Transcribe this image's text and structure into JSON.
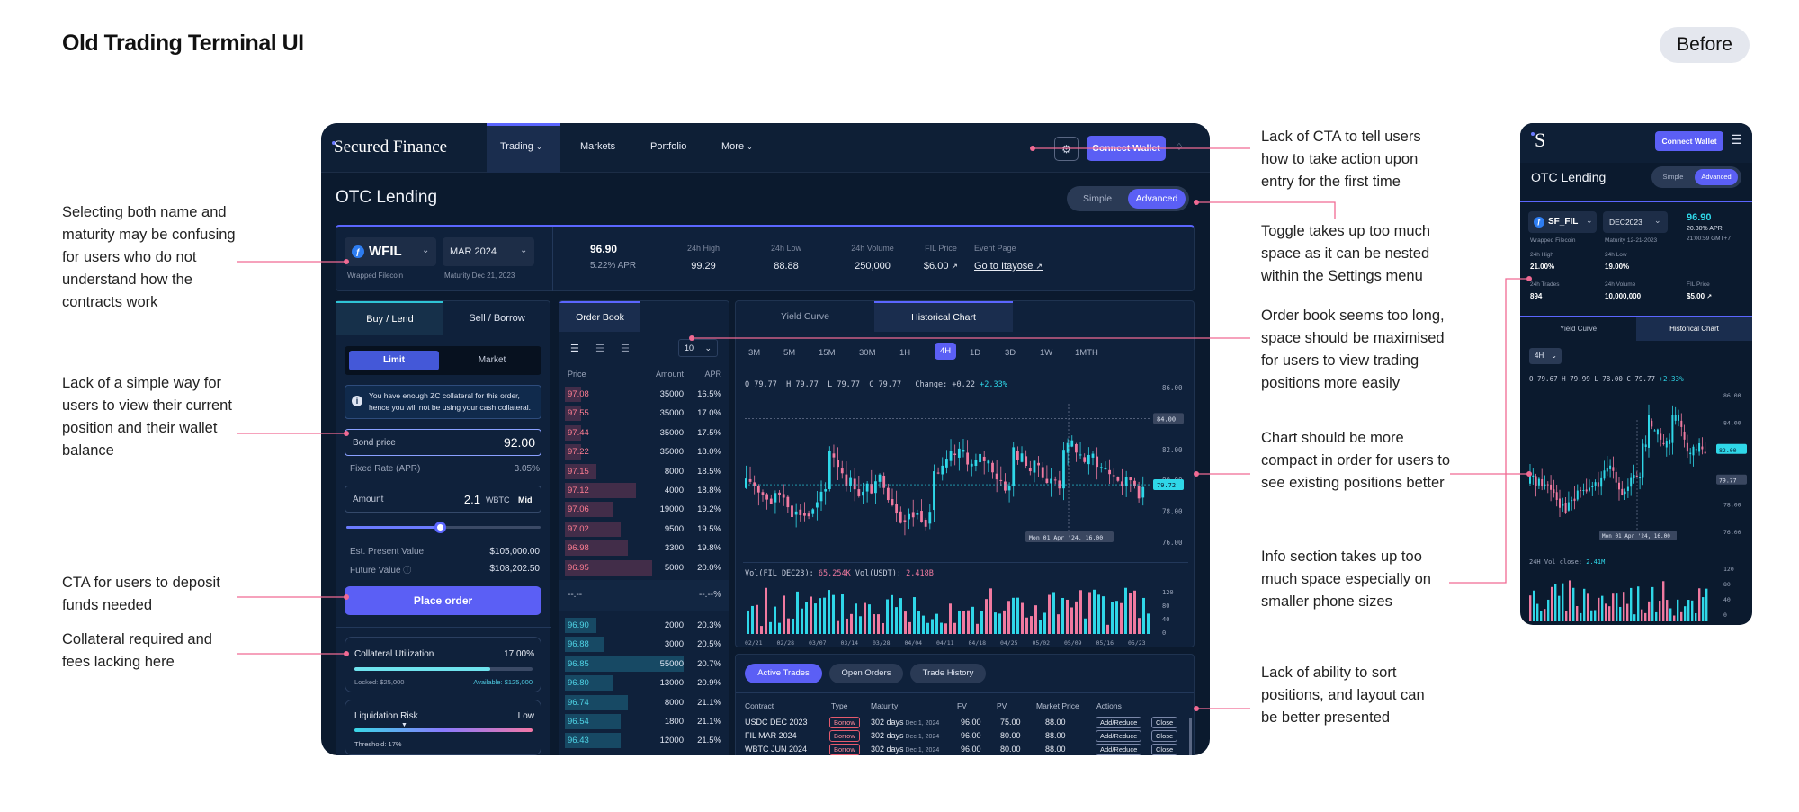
{
  "page": {
    "title": "Old Trading Terminal UI",
    "badge": "Before"
  },
  "annotations_left": [
    "Selecting both name and maturity may be confusing for users who do not understand how the contracts work",
    "Lack of a simple way for users to view their current position and their wallet balance",
    "CTA for users to deposit funds needed",
    "Collateral required and fees lacking here"
  ],
  "annotations_right": [
    "Lack of CTA to tell users how to take action upon entry for the first time",
    "Toggle takes up too much space as it can be nested within the Settings menu",
    "Order book seems too long, space should be maximised for users to view trading positions more easily",
    "Chart should be more compact in order for users to see existing positions better",
    "Info section takes up too much space especially on smaller phone sizes",
    "Lack of ability to sort positions, and layout can be better presented"
  ],
  "colors": {
    "accent": "#5b5ff5",
    "cyan": "#2fd7e8",
    "pink": "#f07aa0",
    "annotation_line": "#f06a93",
    "bg": "#0b1a2e"
  },
  "desktop": {
    "nav": {
      "logo": "Secured Finance",
      "items": [
        "Trading",
        "Markets",
        "Portfolio",
        "More"
      ],
      "connect": "Connect Wallet"
    },
    "title": "OTC Lending",
    "toggle": {
      "simple": "Simple",
      "advanced": "Advanced"
    },
    "info": {
      "token": "WFIL",
      "token_sub": "Wrapped Filecoin",
      "maturity": "MAR 2024",
      "maturity_sub": "Maturity Dec 21, 2023",
      "price": "96.90",
      "apr": "5.22% APR",
      "stats": [
        {
          "label": "24h High",
          "value": "99.29"
        },
        {
          "label": "24h Low",
          "value": "88.88"
        },
        {
          "label": "24h Volume",
          "value": "250,000"
        },
        {
          "label": "FIL Price",
          "value": "$6.00"
        },
        {
          "label": "Event Page",
          "value": "Go to Itayose"
        }
      ]
    },
    "order_form": {
      "tabs": [
        "Buy / Lend",
        "Sell / Borrow"
      ],
      "modes": [
        "Limit",
        "Market"
      ],
      "notice": "You have enough ZC collateral for this order, hence you will not be using your cash collateral.",
      "bond_price_label": "Bond price",
      "bond_price": "92.00",
      "fixed_rate_label": "Fixed Rate (APR)",
      "fixed_rate": "3.05%",
      "amount_label": "Amount",
      "amount": "2.1",
      "amount_unit": "WBTC",
      "amount_mid": "Mid",
      "slider_pct": 0.48,
      "epv_label": "Est. Present Value",
      "epv": "$105,000.00",
      "fv_label": "Future Value",
      "fv": "$108,202.50",
      "place_order": "Place order",
      "collateral_label": "Collateral Utilization",
      "collateral_pct": "17.00%",
      "collateral_fill": 0.17,
      "locked": "Locked: $25,000",
      "available": "Available: $125,000",
      "liq_label": "Liquidation Risk",
      "liq_value": "Low",
      "threshold": "Threshold: 17%"
    },
    "order_book": {
      "tab": "Order Book",
      "depth": "10",
      "headers": [
        "Price",
        "Amount",
        "APR"
      ],
      "asks": [
        {
          "price": "97.08",
          "amount": "35000",
          "apr": "16.5%",
          "depth": 0.1
        },
        {
          "price": "97.55",
          "amount": "35000",
          "apr": "17.0%",
          "depth": 0.1
        },
        {
          "price": "97.44",
          "amount": "35000",
          "apr": "17.5%",
          "depth": 0.1
        },
        {
          "price": "97.22",
          "amount": "35000",
          "apr": "18.0%",
          "depth": 0.1
        },
        {
          "price": "97.15",
          "amount": "8000",
          "apr": "18.5%",
          "depth": 0.2
        },
        {
          "price": "97.12",
          "amount": "4000",
          "apr": "18.8%",
          "depth": 0.45
        },
        {
          "price": "97.06",
          "amount": "19000",
          "apr": "19.2%",
          "depth": 0.3
        },
        {
          "price": "97.02",
          "amount": "9500",
          "apr": "19.5%",
          "depth": 0.35
        },
        {
          "price": "96.98",
          "amount": "3300",
          "apr": "19.8%",
          "depth": 0.4
        },
        {
          "price": "96.95",
          "amount": "5000",
          "apr": "20.0%",
          "depth": 0.55
        }
      ],
      "mid_left": "--.--",
      "mid_right": "--.--%",
      "bids": [
        {
          "price": "96.90",
          "amount": "2000",
          "apr": "20.3%",
          "depth": 0.2
        },
        {
          "price": "96.88",
          "amount": "3000",
          "apr": "20.5%",
          "depth": 0.25
        },
        {
          "price": "96.85",
          "amount": "55000",
          "apr": "20.7%",
          "depth": 0.75
        },
        {
          "price": "96.80",
          "amount": "13000",
          "apr": "20.9%",
          "depth": 0.3
        },
        {
          "price": "96.74",
          "amount": "8000",
          "apr": "21.1%",
          "depth": 0.4
        },
        {
          "price": "96.54",
          "amount": "1800",
          "apr": "21.1%",
          "depth": 0.35
        },
        {
          "price": "96.43",
          "amount": "12000",
          "apr": "21.5%",
          "depth": 0.35
        }
      ]
    },
    "chart": {
      "tabs": [
        "Yield Curve",
        "Historical Chart"
      ],
      "timeframes": [
        "3M",
        "5M",
        "15M",
        "30M",
        "1H",
        "4H",
        "1D",
        "3D",
        "1W",
        "1MTH"
      ],
      "active_tf": "4H",
      "ohlc": {
        "o": "79.77",
        "h": "79.77",
        "l": "79.77",
        "c": "79.77",
        "change": "+0.22",
        "change_pct": "+2.33%"
      },
      "price_ticks": [
        "86.00",
        "84.00",
        "82.00",
        "80.00",
        "78.00",
        "76.00"
      ],
      "marker_84": "84.00",
      "last_price": "79.72",
      "crosshair": "Mon 01 Apr '24, 16.00",
      "vol_label": "Vol(FIL DEC23):",
      "vol_value": "65.254K",
      "vol_usdt_label": "Vol(USDT):",
      "vol_usdt_value": "2.418B",
      "vol_ticks": [
        "120",
        "80",
        "40",
        "0"
      ],
      "dates": [
        "02/21",
        "02/28",
        "03/07",
        "03/14",
        "03/28",
        "04/04",
        "04/11",
        "04/18",
        "04/25",
        "05/02",
        "05/09",
        "05/16",
        "05/23"
      ]
    },
    "trades": {
      "tabs": [
        "Active Trades",
        "Open Orders",
        "Trade History"
      ],
      "headers": [
        "Contract",
        "Type",
        "Maturity",
        "FV",
        "PV",
        "Market Price",
        "Actions"
      ],
      "rows": [
        {
          "contract": "USDC DEC 2023",
          "type": "Borrow",
          "maturity": "302 days",
          "maturity_sub": "Dec 1, 2024",
          "fv": "96.00",
          "pv": "75.00",
          "market": "88.00"
        },
        {
          "contract": "FIL MAR 2024",
          "type": "Borrow",
          "maturity": "302 days",
          "maturity_sub": "Dec 1, 2024",
          "fv": "96.00",
          "pv": "80.00",
          "market": "88.00"
        },
        {
          "contract": "WBTC JUN 2024",
          "type": "Borrow",
          "maturity": "302 days",
          "maturity_sub": "Dec 1, 2024",
          "fv": "96.00",
          "pv": "80.00",
          "market": "88.00"
        }
      ],
      "add_reduce": "Add/Reduce",
      "close": "Close"
    }
  },
  "mobile": {
    "logo": "S",
    "connect": "Connect Wallet",
    "title": "OTC Lending",
    "toggle": {
      "simple": "Simple",
      "advanced": "Advanced"
    },
    "token": "SF_FIL",
    "token_sub": "Wrapped Filecoin",
    "maturity": "DEC2023",
    "maturity_sub": "Maturity 12-21-2023",
    "price": "96.90",
    "apr": "20.30% APR",
    "time": "21:00:59 GMT+7",
    "stats": [
      {
        "label": "24h High",
        "value": "21.00%"
      },
      {
        "label": "24h Low",
        "value": "19.00%"
      },
      {
        "label": "24h Trades",
        "value": "894"
      },
      {
        "label": "24h Volume",
        "value": "10,000,000"
      },
      {
        "label": "FIL Price",
        "value": "$5.00"
      }
    ],
    "tabs": [
      "Yield Curve",
      "Historical Chart"
    ],
    "tf": "4H",
    "ohlc": {
      "o": "79.67",
      "h": "79.99",
      "l": "78.00",
      "c": "79.77",
      "change_pct": "+2.33%"
    },
    "price_ticks": [
      "86.00",
      "84.00",
      "82.00",
      "80.00",
      "78.00",
      "76.00"
    ],
    "tag_82": "82.00",
    "tag_79": "79.77",
    "crosshair": "Mon 01 Apr '24, 16.00",
    "vol_label": "24H Vol close:",
    "vol_value": "2.41M",
    "vol_ticks": [
      "120",
      "80",
      "40",
      "0"
    ]
  }
}
